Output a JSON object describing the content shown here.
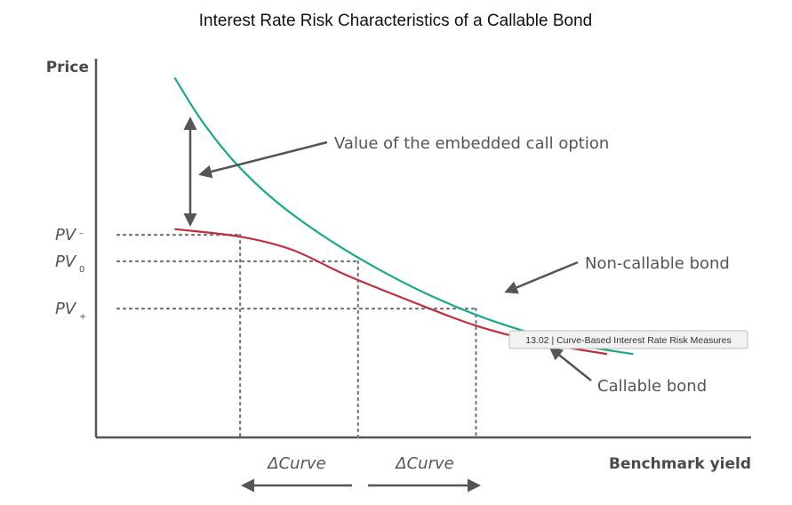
{
  "chart_data": {
    "type": "line",
    "title": "Interest Rate Risk Characteristics of a Callable Bond",
    "xlabel": "Benchmark yield",
    "ylabel": "Price",
    "xlim": [
      0,
      100
    ],
    "ylim": [
      0,
      100
    ],
    "grid": false,
    "series": [
      {
        "name": "Non-callable bond",
        "color": "#1aa88a",
        "x": [
          12,
          16,
          21,
          27,
          34,
          42,
          51,
          61,
          72,
          82
        ],
        "y": [
          95,
          84,
          73,
          63,
          54,
          45.5,
          37.5,
          30.5,
          25,
          22
        ]
      },
      {
        "name": "Callable bond",
        "color": "#c0303c",
        "x": [
          12,
          22,
          30,
          38,
          48,
          58,
          68,
          78
        ],
        "y": [
          55,
          53,
          49.5,
          43,
          36,
          29.5,
          25,
          22
        ]
      }
    ],
    "reference_levels": [
      {
        "label": "PV",
        "subscript": "–",
        "x": 22,
        "y": 53.5
      },
      {
        "label": "PV",
        "subscript": "0",
        "x": 40,
        "y": 46.5
      },
      {
        "label": "PV",
        "subscript": "+",
        "x": 58,
        "y": 34
      }
    ],
    "annotations": {
      "option_value": "Value of the embedded call option",
      "noncallable": "Non-callable bond",
      "callable": "Callable bond",
      "delta_left": "ΔCurve",
      "delta_right": "ΔCurve"
    },
    "tooltip": "13.02 | Curve-Based Interest Rate Risk Measures"
  }
}
